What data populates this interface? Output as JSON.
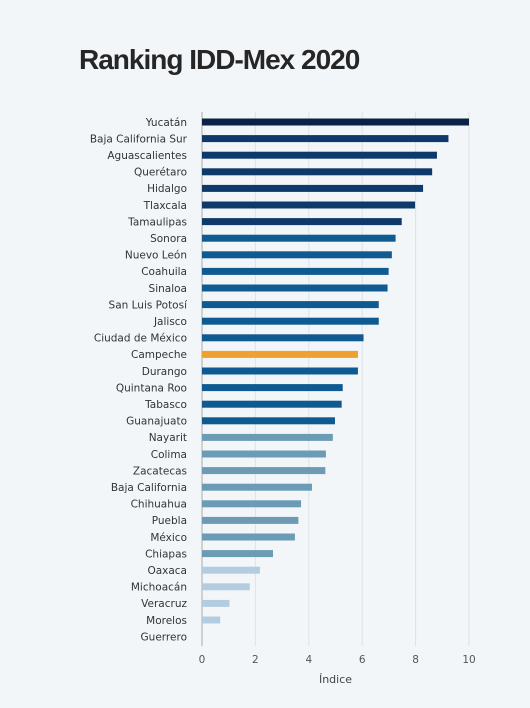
{
  "chart_data": {
    "type": "bar",
    "orientation": "horizontal",
    "title": "Ranking IDD-Mex 2020",
    "xlabel": "Índice",
    "ylabel": "",
    "xlim": [
      0,
      10
    ],
    "xticks": [
      "0",
      "2",
      "4",
      "6",
      "8",
      "10"
    ],
    "grid": true,
    "categories": [
      "Yucatán",
      "Baja California Sur",
      "Aguascalientes",
      "Querétaro",
      "Hidalgo",
      "Tlaxcala",
      "Tamaulipas",
      "Sonora",
      "Nuevo León",
      "Coahuila",
      "Sinaloa",
      "San Luis Potosí",
      "Jalisco",
      "Ciudad de México",
      "Campeche",
      "Durango",
      "Quintana Roo",
      "Tabasco",
      "Guanajuato",
      "Nayarit",
      "Colima",
      "Zacatecas",
      "Baja California",
      "Chihuahua",
      "Puebla",
      "México",
      "Chiapas",
      "Oaxaca",
      "Michoacán",
      "Veracruz",
      "Morelos",
      "Guerrero"
    ],
    "values": [
      10.0,
      9.23,
      8.8,
      8.62,
      8.28,
      7.98,
      7.48,
      7.25,
      7.11,
      6.99,
      6.95,
      6.62,
      6.62,
      6.05,
      5.84,
      5.84,
      5.27,
      5.23,
      4.98,
      4.9,
      4.64,
      4.62,
      4.12,
      3.71,
      3.61,
      3.48,
      2.66,
      2.17,
      1.79,
      1.03,
      0.68,
      0.0
    ],
    "colors": {
      "top": "#0a2245",
      "high": "#0d3a6b",
      "medium_high": "#0f5a90",
      "highlight": "#f0a030",
      "medium_low": "#6b9bb5",
      "low": "#b3cde0",
      "grid": "#dde3ea",
      "axis": "#aaaaaa"
    },
    "color_groups": [
      "top",
      "high",
      "high",
      "high",
      "high",
      "high",
      "high",
      "medium_high",
      "medium_high",
      "medium_high",
      "medium_high",
      "medium_high",
      "medium_high",
      "medium_high",
      "highlight",
      "medium_high",
      "medium_high",
      "medium_high",
      "medium_high",
      "medium_low",
      "medium_low",
      "medium_low",
      "medium_low",
      "medium_low",
      "medium_low",
      "medium_low",
      "medium_low",
      "low",
      "low",
      "low",
      "low",
      "low"
    ]
  }
}
